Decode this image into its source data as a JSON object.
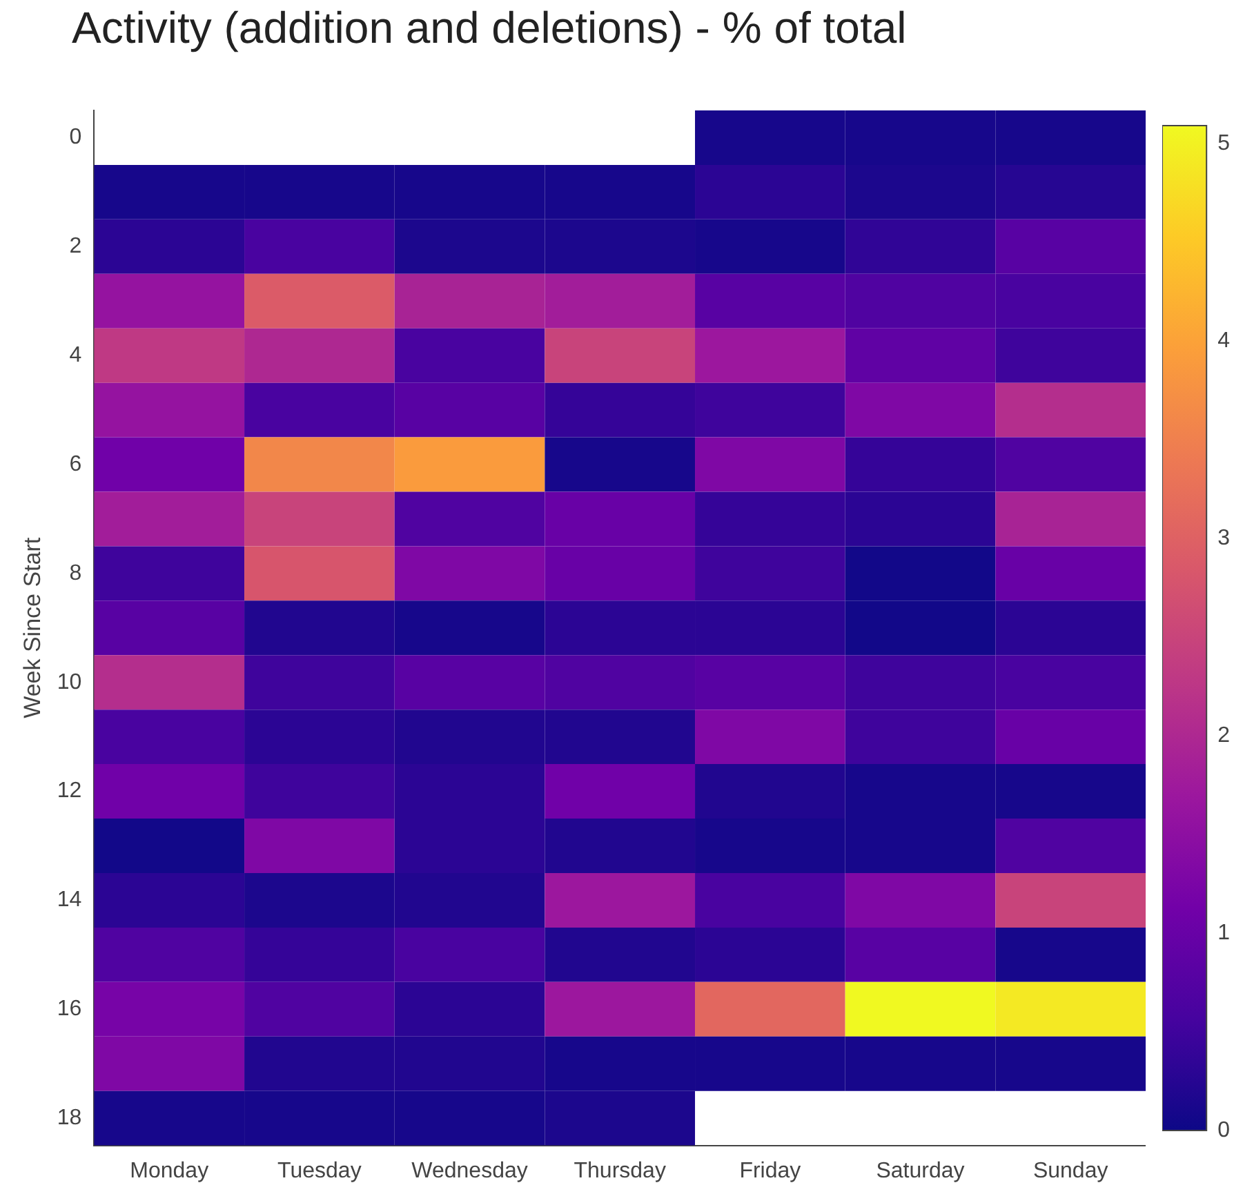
{
  "chart_data": {
    "type": "heatmap",
    "title": "Activity (addition and deletions) - % of total",
    "ylabel": "Week Since Start",
    "categories": [
      "Monday",
      "Tuesday",
      "Wednesday",
      "Thursday",
      "Friday",
      "Saturday",
      "Sunday"
    ],
    "y_categories": [
      "0",
      null,
      "2",
      null,
      "4",
      null,
      "6",
      null,
      "8",
      null,
      "10",
      null,
      "12",
      null,
      "14",
      null,
      "16",
      null,
      "18"
    ],
    "cells": [
      [
        null,
        null,
        null,
        null,
        0.1,
        0.1,
        0.1
      ],
      [
        0.1,
        0.1,
        0.1,
        0.1,
        0.3,
        0.15,
        0.25
      ],
      [
        0.3,
        0.6,
        0.15,
        0.15,
        0.1,
        0.35,
        0.8
      ],
      [
        1.6,
        2.9,
        1.9,
        1.8,
        0.8,
        0.7,
        0.6
      ],
      [
        2.3,
        2.0,
        0.6,
        2.5,
        1.7,
        0.9,
        0.5
      ],
      [
        1.6,
        0.6,
        0.8,
        0.4,
        0.5,
        1.3,
        2.1
      ],
      [
        1.1,
        3.6,
        3.9,
        0.1,
        1.3,
        0.4,
        0.7
      ],
      [
        1.8,
        2.5,
        0.7,
        1.0,
        0.4,
        0.3,
        1.9
      ],
      [
        0.5,
        2.8,
        1.3,
        1.0,
        0.5,
        0.05,
        1.0
      ],
      [
        0.8,
        0.2,
        0.1,
        0.3,
        0.3,
        0.05,
        0.3
      ],
      [
        2.1,
        0.5,
        0.8,
        0.7,
        0.8,
        0.5,
        0.6
      ],
      [
        0.6,
        0.3,
        0.2,
        0.2,
        1.3,
        0.5,
        1.0
      ],
      [
        1.1,
        0.5,
        0.3,
        1.1,
        0.2,
        0.1,
        0.1
      ],
      [
        0.05,
        1.3,
        0.3,
        0.2,
        0.1,
        0.1,
        0.7
      ],
      [
        0.3,
        0.15,
        0.2,
        1.7,
        0.6,
        1.3,
        2.5
      ],
      [
        0.7,
        0.4,
        0.6,
        0.2,
        0.3,
        0.8,
        0.1
      ],
      [
        1.2,
        0.7,
        0.3,
        1.7,
        3.1,
        5.09,
        4.9
      ],
      [
        1.3,
        0.2,
        0.2,
        0.1,
        0.1,
        0.1,
        0.1
      ],
      [
        0.1,
        0.1,
        0.1,
        0.15,
        null,
        null,
        null
      ]
    ],
    "clim": [
      0,
      5.09
    ],
    "cticks": [
      0,
      1,
      2,
      3,
      4,
      5
    ]
  }
}
